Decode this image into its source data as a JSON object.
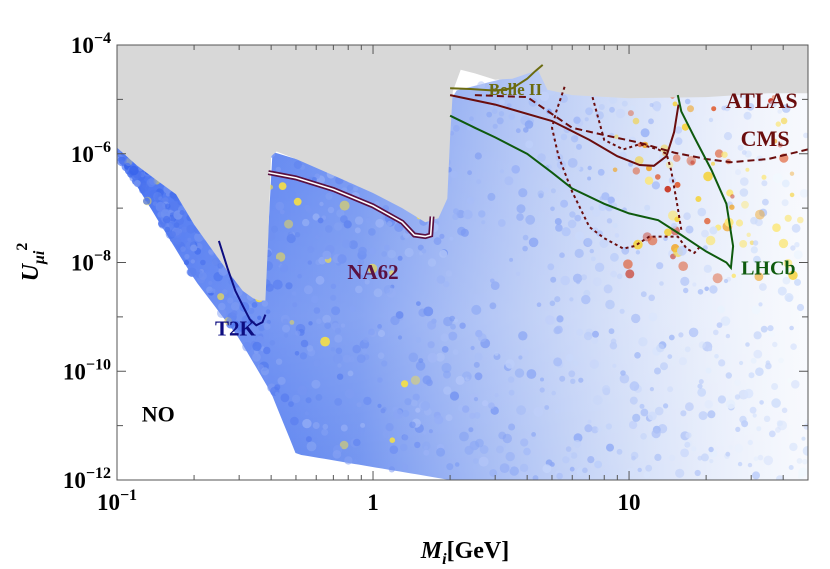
{
  "chart_data": {
    "type": "scatter",
    "title": "",
    "xlabel": {
      "main": "M",
      "sub": "i",
      "rest": "[GeV]"
    },
    "ylabel": {
      "main": "U",
      "sub": "μi",
      "sup": "2"
    },
    "xscale": "log",
    "yscale": "log",
    "xlim": [
      0.1,
      50
    ],
    "ylim": [
      1e-12,
      0.0001
    ],
    "grid": false,
    "legend": "none",
    "x_ticks": [
      {
        "value": 0.1,
        "label": "10",
        "exp": "−1"
      },
      {
        "value": 1,
        "label": "1",
        "exp": ""
      },
      {
        "value": 10,
        "label": "10",
        "exp": ""
      }
    ],
    "y_ticks": [
      {
        "value": 0.0001,
        "label": "10",
        "exp": "−4"
      },
      {
        "value": 1e-06,
        "label": "10",
        "exp": "−6"
      },
      {
        "value": 1e-08,
        "label": "10",
        "exp": "−8"
      },
      {
        "value": 1e-10,
        "label": "10",
        "exp": "−10"
      },
      {
        "value": 1e-12,
        "label": "10",
        "exp": "−12"
      }
    ],
    "excluded_region": {
      "color": "#d8d8d8",
      "points": [
        [
          0.1,
          0.0001
        ],
        [
          0.1,
          1.3e-06
        ],
        [
          0.12,
          6e-07
        ],
        [
          0.14,
          3.5e-07
        ],
        [
          0.17,
          1.8e-07
        ],
        [
          0.2,
          5e-08
        ],
        [
          0.23,
          2e-08
        ],
        [
          0.27,
          7e-09
        ],
        [
          0.31,
          3e-09
        ],
        [
          0.34,
          2.2e-09
        ],
        [
          0.36,
          2e-09
        ],
        [
          0.38,
          2e-09
        ],
        [
          0.39,
          3e-08
        ],
        [
          0.4,
          9e-07
        ],
        [
          0.42,
          1.1e-06
        ],
        [
          0.5,
          8e-07
        ],
        [
          0.7,
          4e-07
        ],
        [
          1.0,
          1.9e-07
        ],
        [
          1.3,
          1e-07
        ],
        [
          1.6,
          5.5e-08
        ],
        [
          1.8,
          6.5e-08
        ],
        [
          1.95,
          1.5e-07
        ],
        [
          2.0,
          2e-06
        ],
        [
          2.05,
          1.4e-05
        ],
        [
          2.2,
          3.5e-05
        ],
        [
          2.5,
          3e-05
        ],
        [
          3.0,
          2.3e-05
        ],
        [
          3.5,
          2.4e-05
        ],
        [
          4.2,
          3.2e-05
        ],
        [
          4.4,
          3.5e-05
        ],
        [
          4.8,
          1.5e-05
        ],
        [
          6,
          1.2e-05
        ],
        [
          10,
          1.05e-05
        ],
        [
          20,
          1.1e-05
        ],
        [
          35,
          1.3e-05
        ],
        [
          50,
          1.3e-05
        ],
        [
          50,
          0.0001
        ]
      ]
    },
    "series": [
      {
        "name": "T2K",
        "color": "#0d0d80",
        "style": "solid",
        "label_pos": [
          0.29,
          4.5e-10
        ],
        "points": [
          [
            0.25,
            2.5e-08
          ],
          [
            0.27,
            8e-09
          ],
          [
            0.29,
            3e-09
          ],
          [
            0.31,
            1.6e-09
          ],
          [
            0.33,
            9e-10
          ],
          [
            0.35,
            7e-10
          ],
          [
            0.37,
            8e-10
          ],
          [
            0.38,
            1.1e-09
          ]
        ]
      },
      {
        "name": "NA62",
        "color": "#5a1040",
        "style": "solid",
        "label_pos": [
          1.0,
          5e-09
        ],
        "points": [
          [
            0.39,
            4.5e-07
          ],
          [
            0.5,
            3.6e-07
          ],
          [
            0.7,
            2.2e-07
          ],
          [
            1.0,
            1.1e-07
          ],
          [
            1.3,
            5.5e-08
          ],
          [
            1.45,
            3.2e-08
          ],
          [
            1.6,
            3e-08
          ],
          [
            1.68,
            3.2e-08
          ],
          [
            1.7,
            7e-08
          ]
        ]
      },
      {
        "name": "Belle II",
        "color": "#6b6b10",
        "style": "solid",
        "label_pos": [
          3.6,
          1.2e-05
        ],
        "points": [
          [
            2.0,
            1.6e-05
          ],
          [
            2.4,
            1.55e-05
          ],
          [
            3.0,
            1.45e-05
          ],
          [
            3.5,
            1.6e-05
          ],
          [
            4.0,
            2.4e-05
          ],
          [
            4.3,
            3.3e-05
          ],
          [
            4.6,
            4.3e-05
          ]
        ]
      },
      {
        "name": "ATLAS",
        "color": "#6a0d0d",
        "style": "solid",
        "label_pos": [
          33,
          7e-06
        ],
        "points": [
          [
            2.0,
            1.2e-05
          ],
          [
            3.0,
            8e-06
          ],
          [
            5.0,
            4e-06
          ],
          [
            7.0,
            1.8e-06
          ],
          [
            9.0,
            9e-07
          ],
          [
            11.0,
            6.2e-07
          ],
          [
            12.5,
            6e-07
          ],
          [
            14.0,
            9e-07
          ],
          [
            15.0,
            2.5e-06
          ],
          [
            15.6,
            8e-06
          ]
        ]
      },
      {
        "name": "CMS",
        "color": "#6a0d0d",
        "style": "dashed",
        "label_pos": [
          34,
          1.4e-06
        ],
        "points": [
          [
            2.5,
            1.2e-05
          ],
          [
            4.0,
            1.1e-05
          ],
          [
            6.0,
            3e-06
          ],
          [
            8.0,
            2.2e-06
          ],
          [
            11.0,
            1.6e-06
          ],
          [
            15.0,
            1.05e-06
          ],
          [
            20.0,
            8e-07
          ],
          [
            25.0,
            7e-07
          ],
          [
            35.0,
            8e-07
          ],
          [
            50.0,
            1.2e-06
          ]
        ]
      },
      {
        "name": "",
        "color": "#6a0d0d",
        "style": "dotted",
        "points": [
          [
            5.6,
            1.7e-05
          ],
          [
            5.2,
            6e-06
          ],
          [
            5.0,
            3e-06
          ],
          [
            5.3,
            9e-07
          ],
          [
            6.0,
            2e-07
          ],
          [
            7.0,
            4.5e-08
          ],
          [
            8.0,
            2.8e-08
          ],
          [
            9.5,
            1.8e-08
          ],
          [
            10.5,
            2e-08
          ],
          [
            12.0,
            3e-08
          ],
          [
            14.0,
            3e-08
          ],
          [
            15.5,
            3e-08
          ],
          [
            16.8,
            1.8e-08
          ],
          [
            18.0,
            1.5e-08
          ],
          [
            19.0,
            2e-08
          ]
        ]
      },
      {
        "name": "",
        "color": "#6a0d0d",
        "style": "dotted",
        "points": [
          [
            7.2,
            1.1e-05
          ],
          [
            8.0,
            1.8e-06
          ],
          [
            9.5,
            1.2e-06
          ],
          [
            11.0,
            1.5e-06
          ],
          [
            13.0,
            1.2e-06
          ],
          [
            14.0,
            1e-06
          ],
          [
            14.6,
            5e-07
          ],
          [
            15.4,
            1.2e-07
          ],
          [
            16.0,
            4e-08
          ]
        ]
      },
      {
        "name": "LHCb",
        "color": "#0e5a0e",
        "style": "solid",
        "label_pos": [
          35,
          6e-09
        ],
        "points": [
          [
            2.0,
            5e-06
          ],
          [
            2.5,
            3e-06
          ],
          [
            3.0,
            2e-06
          ],
          [
            4.0,
            1e-06
          ],
          [
            5.0,
            4.5e-07
          ],
          [
            6.0,
            2.3e-07
          ],
          [
            8.0,
            1.2e-07
          ],
          [
            10.0,
            8e-08
          ],
          [
            13.0,
            6e-08
          ],
          [
            16.0,
            3.2e-08
          ],
          [
            20.0,
            1.6e-08
          ],
          [
            24.0,
            1e-08
          ],
          [
            25.0,
            8e-09
          ],
          [
            25.5,
            2e-08
          ],
          [
            24.0,
            1.2e-07
          ],
          [
            21.0,
            5e-07
          ],
          [
            18.0,
            2e-06
          ],
          [
            16.0,
            6e-06
          ],
          [
            15.5,
            1.2e-05
          ]
        ]
      }
    ],
    "annotations": [
      {
        "text": "NO",
        "pos": [
          0.125,
          1.2e-11
        ],
        "color": "#000000"
      }
    ]
  }
}
